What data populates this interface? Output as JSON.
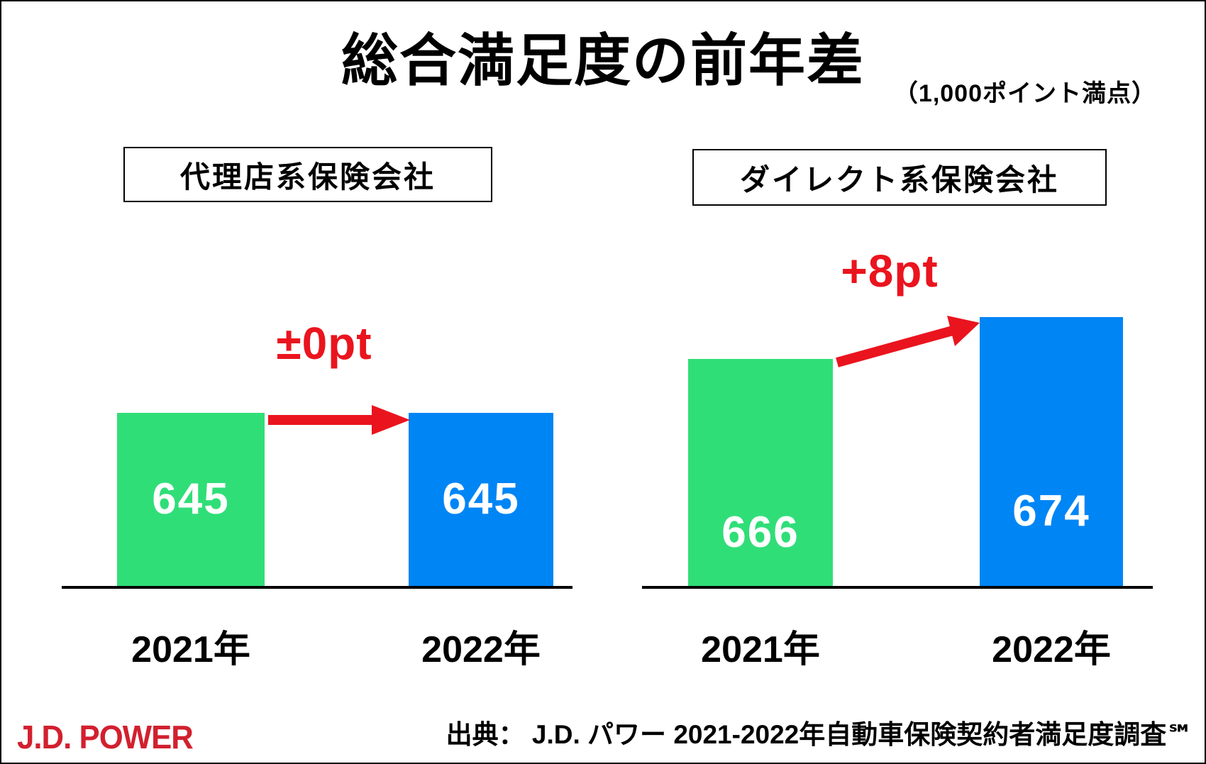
{
  "header": {
    "title": "総合満足度の前年差",
    "subtitle": "（1,000ポイント満点）"
  },
  "colors": {
    "bar_green": "#30DE78",
    "bar_blue": "#0085F5",
    "accent_red": "#EA141E",
    "logo_red": "#D2202E",
    "text_black": "#000000"
  },
  "chart_data": [
    {
      "type": "bar",
      "title": "代理店系保険会社",
      "categories": [
        "2021年",
        "2022年"
      ],
      "values": [
        645,
        645
      ],
      "bar_colors": [
        "#30DE78",
        "#0085F5"
      ],
      "delta_label": "±0pt",
      "delta": 0,
      "ylim": [
        0,
        1000
      ],
      "unit": "pt",
      "grid": false,
      "legend": false
    },
    {
      "type": "bar",
      "title": "ダイレクト系保険会社",
      "categories": [
        "2021年",
        "2022年"
      ],
      "values": [
        666,
        674
      ],
      "bar_colors": [
        "#30DE78",
        "#0085F5"
      ],
      "delta_label": "+8pt",
      "delta": 8,
      "ylim": [
        0,
        1000
      ],
      "unit": "pt",
      "grid": false,
      "legend": false
    }
  ],
  "footer": {
    "logo": "J.D. POWER",
    "source": "出典： J.D. パワー 2021-2022年自動車保険契約者満足度調査℠"
  }
}
